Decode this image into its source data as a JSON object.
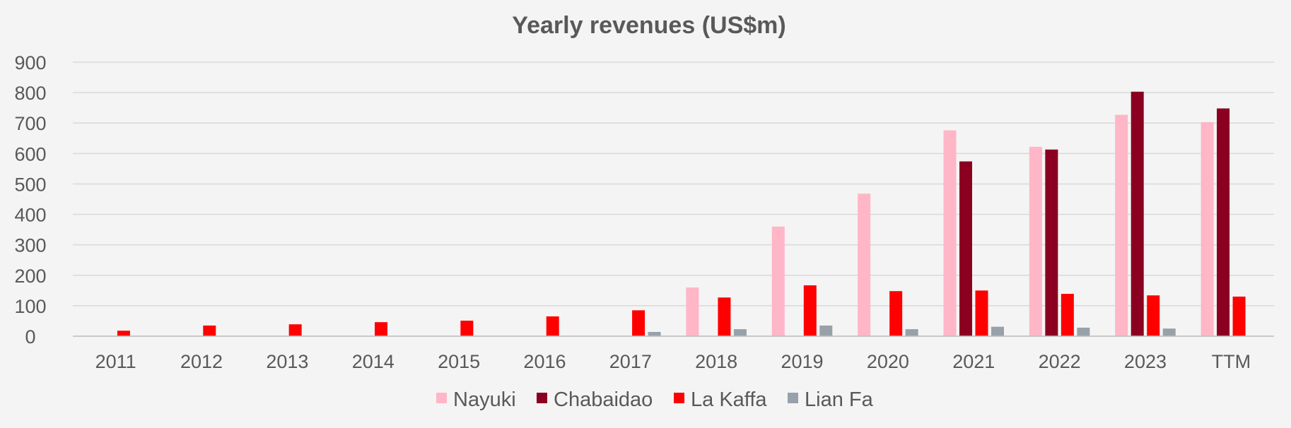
{
  "chart_data": {
    "type": "bar",
    "title": "Yearly revenues (US$m)",
    "xlabel": "",
    "ylabel": "",
    "ylim": [
      0,
      900
    ],
    "yticks": [
      0,
      100,
      200,
      300,
      400,
      500,
      600,
      700,
      800,
      900
    ],
    "grid": true,
    "legend_position": "bottom",
    "categories": [
      "2011",
      "2012",
      "2013",
      "2014",
      "2015",
      "2016",
      "2017",
      "2018",
      "2019",
      "2020",
      "2021",
      "2022",
      "2023",
      "TTM"
    ],
    "series": [
      {
        "name": "Nayuki",
        "color": "#ffb6c6",
        "values": [
          null,
          null,
          null,
          null,
          null,
          null,
          null,
          160,
          360,
          468,
          676,
          622,
          727,
          703
        ]
      },
      {
        "name": "Chabaidao",
        "color": "#8b0020",
        "values": [
          null,
          null,
          null,
          null,
          null,
          null,
          null,
          null,
          null,
          null,
          574,
          613,
          803,
          748
        ]
      },
      {
        "name": "La Kaffa",
        "color": "#ff0000",
        "values": [
          18,
          35,
          39,
          46,
          51,
          65,
          85,
          127,
          167,
          148,
          150,
          139,
          134,
          130
        ]
      },
      {
        "name": "Lian Fa",
        "color": "#98a1aa",
        "values": [
          null,
          null,
          null,
          null,
          null,
          null,
          14,
          23,
          35,
          23,
          31,
          28,
          25,
          null
        ]
      }
    ]
  }
}
